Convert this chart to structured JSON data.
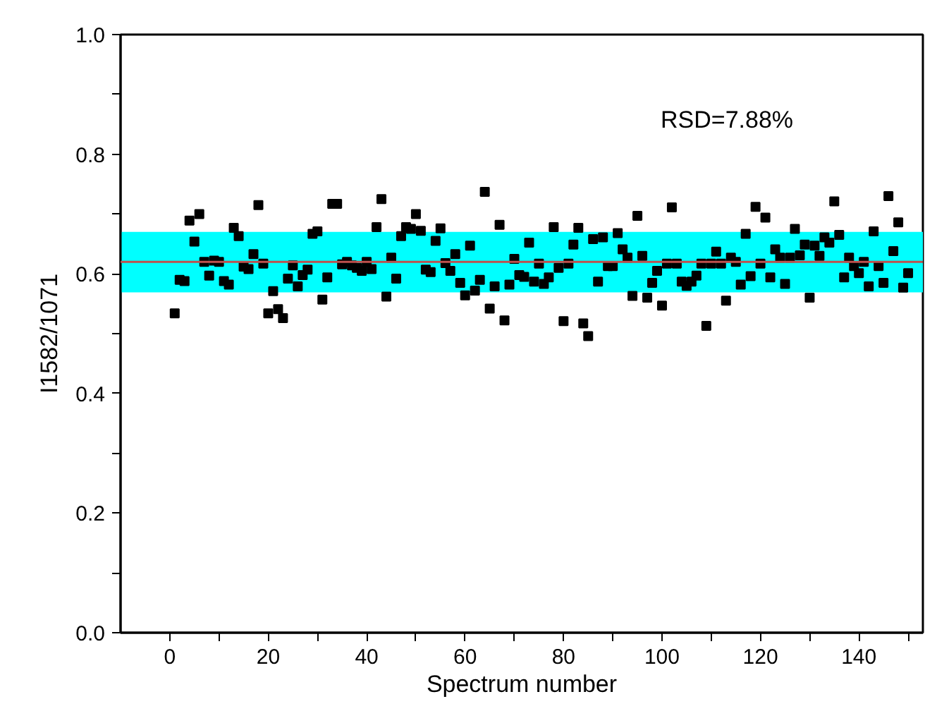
{
  "chart_data": {
    "type": "scatter",
    "xlabel": "Spectrum number",
    "ylabel": "I1582/1071",
    "x": [
      1,
      2,
      3,
      4,
      5,
      6,
      7,
      8,
      9,
      10,
      11,
      12,
      13,
      14,
      15,
      16,
      17,
      18,
      19,
      20,
      21,
      22,
      23,
      24,
      25,
      26,
      27,
      28,
      29,
      30,
      31,
      32,
      33,
      34,
      35,
      36,
      37,
      38,
      39,
      40,
      41,
      42,
      43,
      44,
      45,
      46,
      47,
      48,
      49,
      50,
      51,
      52,
      53,
      54,
      55,
      56,
      57,
      58,
      59,
      60,
      61,
      62,
      63,
      64,
      65,
      66,
      67,
      68,
      69,
      70,
      71,
      72,
      73,
      74,
      75,
      76,
      77,
      78,
      79,
      80,
      81,
      82,
      83,
      84,
      85,
      86,
      87,
      88,
      89,
      90,
      91,
      92,
      93,
      94,
      95,
      96,
      97,
      98,
      99,
      100,
      101,
      102,
      103,
      104,
      105,
      106,
      107,
      108,
      109,
      110,
      111,
      112,
      113,
      114,
      115,
      116,
      117,
      118,
      119,
      120,
      121,
      122,
      123,
      124,
      125,
      126,
      127,
      128,
      129,
      130,
      131,
      132,
      133,
      134,
      135,
      136,
      137,
      138,
      139,
      140,
      141,
      142,
      143,
      144,
      145,
      146,
      147,
      148,
      149,
      150
    ],
    "series": [
      {
        "color": "#000000",
        "values": [
          0.534,
          0.59,
          0.588,
          0.689,
          0.654,
          0.7,
          0.62,
          0.597,
          0.622,
          0.62,
          0.588,
          0.582,
          0.677,
          0.663,
          0.612,
          0.608,
          0.633,
          0.715,
          0.617,
          0.534,
          0.571,
          0.541,
          0.526,
          0.592,
          0.614,
          0.579,
          0.598,
          0.607,
          0.667,
          0.671,
          0.557,
          0.594,
          0.717,
          0.717,
          0.616,
          0.62,
          0.614,
          0.61,
          0.605,
          0.62,
          0.608,
          0.678,
          0.725,
          0.562,
          0.627,
          0.592,
          0.663,
          0.678,
          0.675,
          0.7,
          0.672,
          0.607,
          0.603,
          0.655,
          0.676,
          0.618,
          0.605,
          0.633,
          0.585,
          0.564,
          0.647,
          0.572,
          0.59,
          0.737,
          0.542,
          0.579,
          0.682,
          0.522,
          0.582,
          0.625,
          0.598,
          0.595,
          0.652,
          0.587,
          0.617,
          0.583,
          0.594,
          0.678,
          0.61,
          0.521,
          0.617,
          0.649,
          0.677,
          0.517,
          0.496,
          0.658,
          0.587,
          0.661,
          0.613,
          0.613,
          0.668,
          0.641,
          0.627,
          0.563,
          0.697,
          0.63,
          0.56,
          0.585,
          0.605,
          0.547,
          0.617,
          0.711,
          0.617,
          0.587,
          0.58,
          0.587,
          0.597,
          0.617,
          0.513,
          0.617,
          0.637,
          0.617,
          0.555,
          0.627,
          0.62,
          0.582,
          0.667,
          0.596,
          0.712,
          0.617,
          0.694,
          0.594,
          0.641,
          0.627,
          0.583,
          0.627,
          0.675,
          0.631,
          0.649,
          0.56,
          0.647,
          0.63,
          0.661,
          0.652,
          0.721,
          0.665,
          0.594,
          0.627,
          0.613,
          0.601,
          0.62,
          0.579,
          0.671,
          0.613,
          0.585,
          0.73,
          0.638,
          0.686,
          0.577,
          0.601
        ]
      }
    ],
    "marker": "square",
    "ref_lines": [
      {
        "axis": "y",
        "value": 0.62,
        "color": "#c0504d"
      }
    ],
    "bands": [
      {
        "axis": "y",
        "from": 0.569,
        "to": 0.67,
        "color": "#00ffff"
      }
    ],
    "annotations": [
      "RSD=7.88%"
    ],
    "xlim": [
      -10,
      153
    ],
    "xticks": [
      0,
      {
        "value": 10,
        "label": null
      },
      20,
      {
        "value": 30,
        "label": null
      },
      40,
      {
        "value": 50,
        "label": null
      },
      60,
      {
        "value": 70,
        "label": null
      },
      80,
      {
        "value": 90,
        "label": null
      },
      100,
      {
        "value": 110,
        "label": null
      },
      120,
      {
        "value": 130,
        "label": null
      },
      140,
      {
        "value": 150,
        "label": null
      }
    ],
    "ylim": [
      0,
      1
    ],
    "yticks": [
      {
        "value": 0,
        "label": "0.0"
      },
      {
        "value": 0.1,
        "label": null
      },
      0.2,
      {
        "value": 0.3,
        "label": null
      },
      0.4,
      {
        "value": 0.5,
        "label": null
      },
      0.6,
      {
        "value": 0.7,
        "label": null
      },
      0.8,
      {
        "value": 0.9,
        "label": null
      },
      {
        "value": 1,
        "label": "1.0"
      }
    ],
    "grid": false
  }
}
